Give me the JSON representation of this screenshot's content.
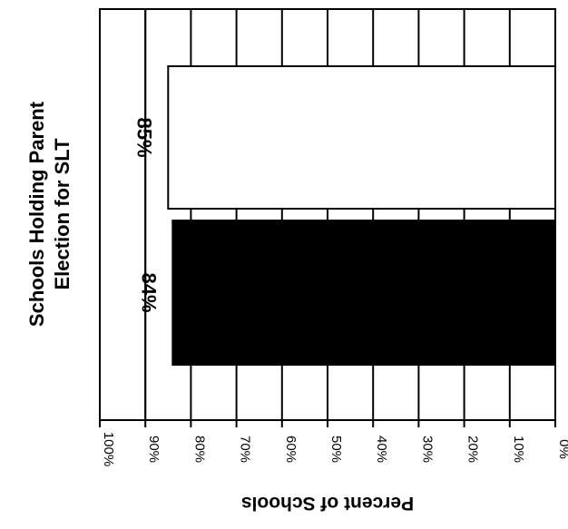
{
  "chart_data": {
    "type": "bar",
    "orientation": "horizontal",
    "title_lines": [
      "Schools Holding Parent",
      "Election for SLT"
    ],
    "xlabel": "Percent of Schools",
    "x_ticks": [
      "100%",
      "90%",
      "80%",
      "70%",
      "60%",
      "50%",
      "40%",
      "30%",
      "20%",
      "10%",
      "0%"
    ],
    "xlim": [
      0,
      100
    ],
    "x_reversed": true,
    "grid": "vertical",
    "series": [
      {
        "value": 85,
        "label": "85%",
        "color": "#ffffff"
      },
      {
        "value": 84,
        "label": "84%",
        "color": "#000000"
      }
    ],
    "reference_line": 90
  }
}
